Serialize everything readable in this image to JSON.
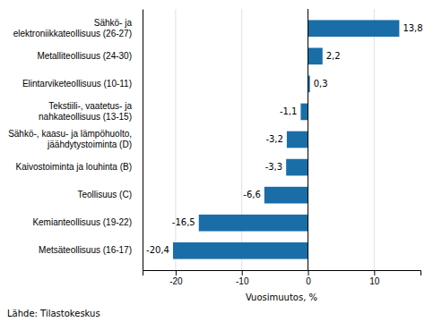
{
  "chart_data": {
    "type": "bar",
    "orientation": "horizontal",
    "categories": [
      "Metsäteollisuus (16-17)",
      "Kemianteollisuus (19-22)",
      "Teollisuus (C)",
      "Kaivostoiminta ja louhinta (B)",
      "Sähkö-, kaasu- ja lämpöhuolto,\njäähdytystoiminta (D)",
      "Tekstiili-, vaatetus- ja\nnahkateollisuus (13-15)",
      "Elintarviketeollisuus (10-11)",
      "Metalliteollisuus (24-30)",
      "Sähkö- ja\nelektroniikkateollisuus (26-27)"
    ],
    "values": [
      -20.4,
      -16.5,
      -6.6,
      -3.3,
      -3.2,
      -1.1,
      0.3,
      2.2,
      13.8
    ],
    "value_labels": [
      "-20,4",
      "-16,5",
      "-6,6",
      "-3,3",
      "-3,2",
      "-1,1",
      "0,3",
      "2,2",
      "13,8"
    ],
    "data_labels": true,
    "color": "#1a6ea8",
    "xlabel": "Vuosimuutos, %",
    "xlim": [
      -25,
      17
    ],
    "xticks": [
      -20,
      -10,
      0,
      10
    ],
    "grid": true,
    "annotations": [
      "Lähde: Tilastokeskus"
    ]
  }
}
